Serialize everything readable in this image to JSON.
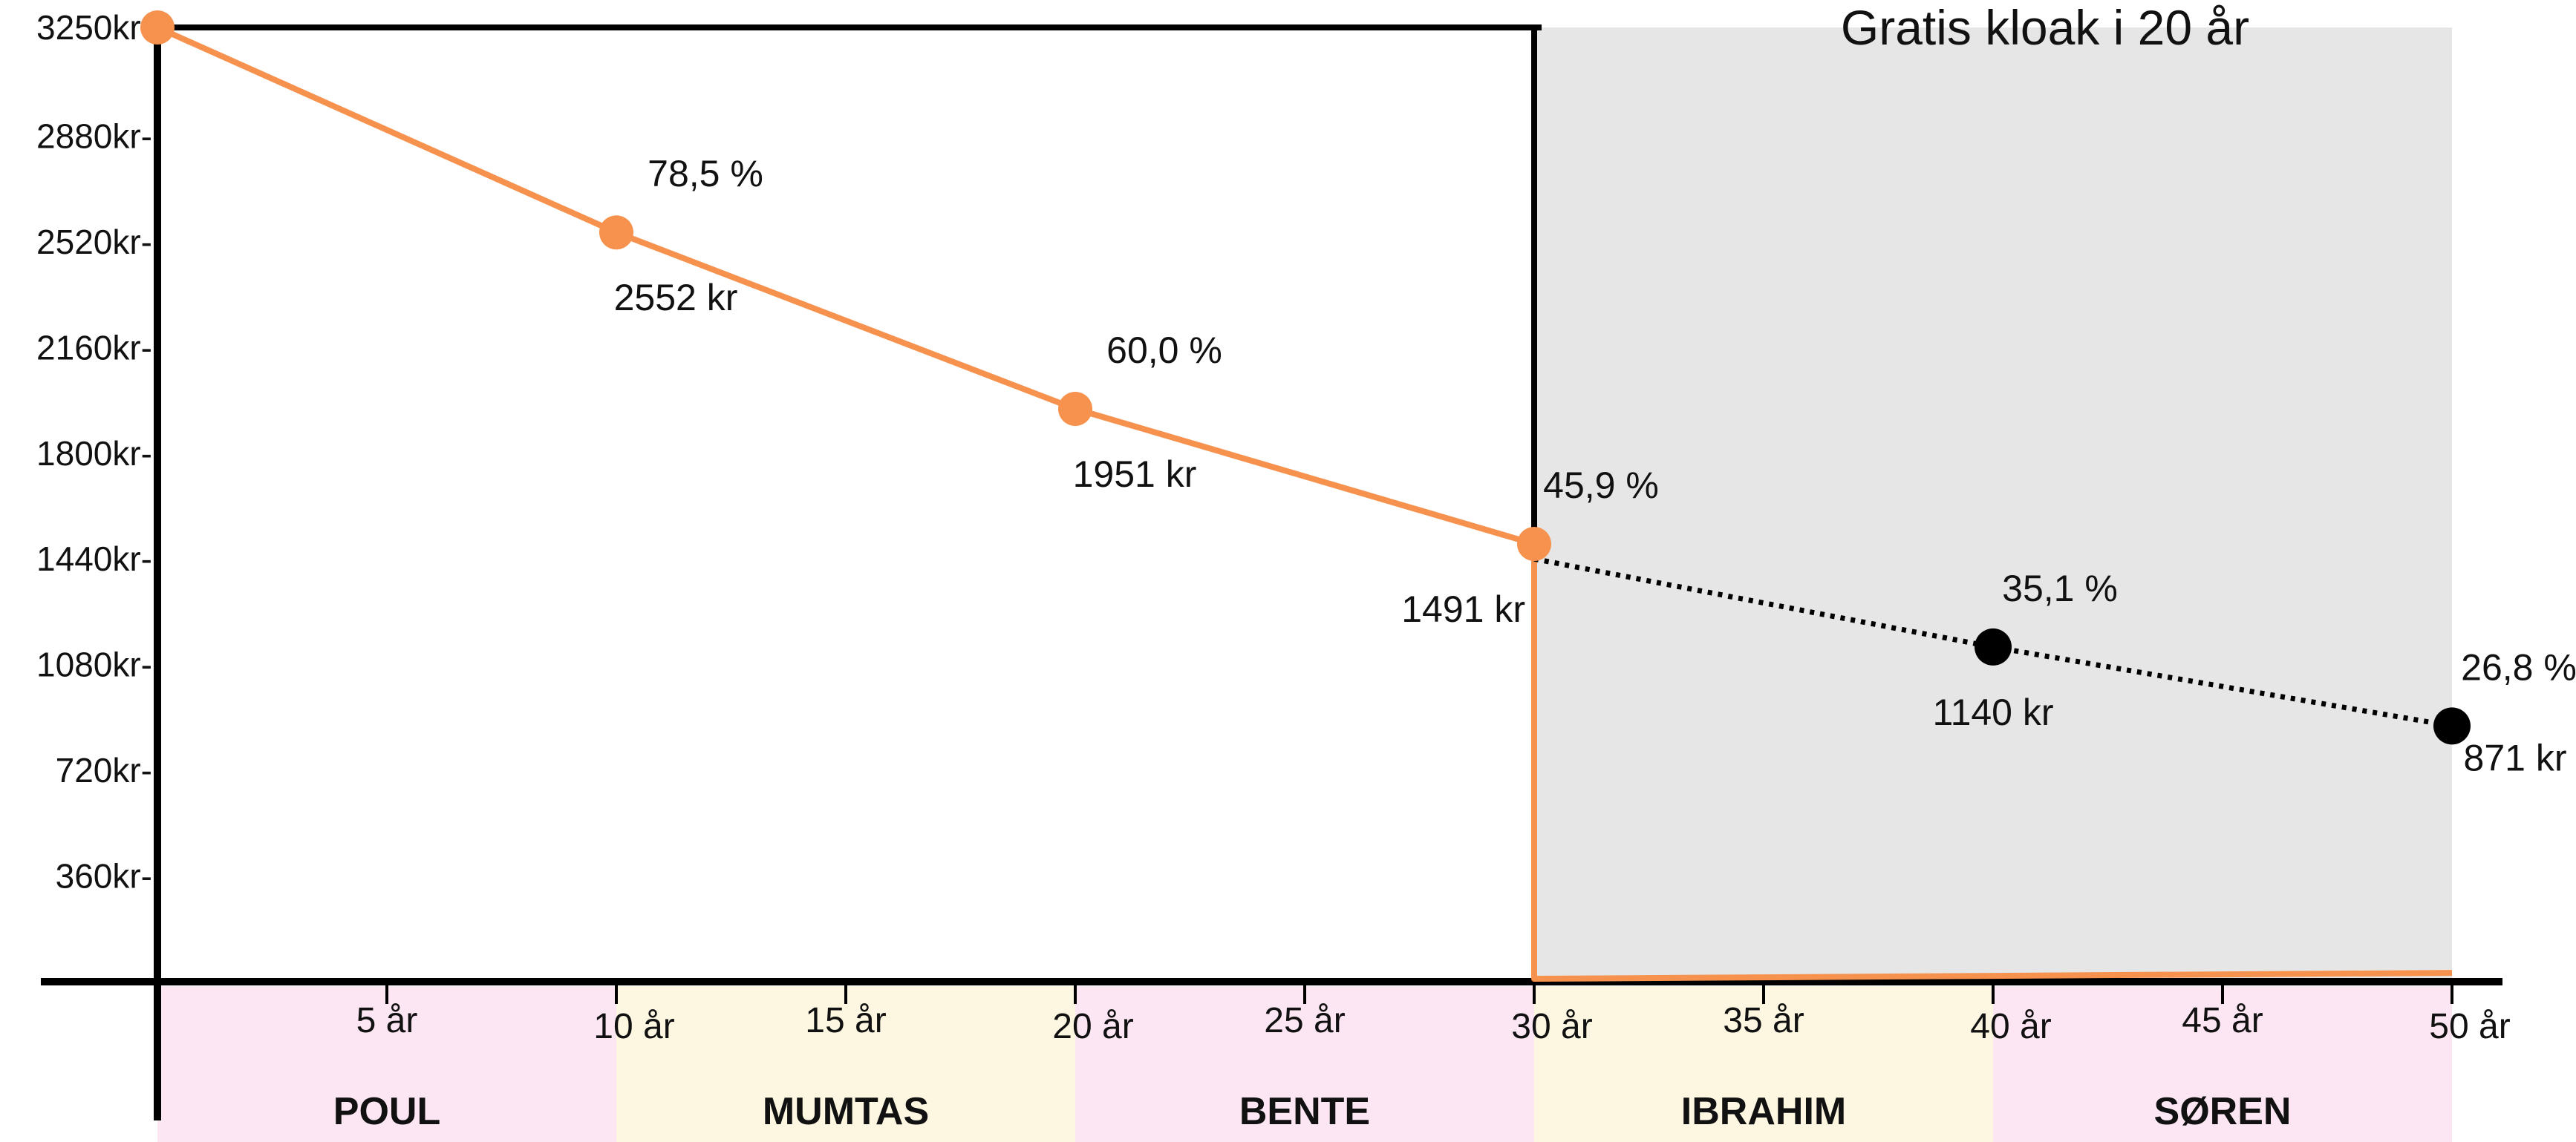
{
  "chart_data": {
    "type": "line",
    "x_unit_label": "år",
    "y_ticks": [
      {
        "value": 3250,
        "label": "3250kr-"
      },
      {
        "value": 2880,
        "label": "2880kr-"
      },
      {
        "value": 2520,
        "label": "2520kr-"
      },
      {
        "value": 2160,
        "label": "2160kr-"
      },
      {
        "value": 1800,
        "label": "1800kr-"
      },
      {
        "value": 1440,
        "label": "1440kr-"
      },
      {
        "value": 1080,
        "label": "1080kr-"
      },
      {
        "value": 720,
        "label": "720kr-"
      },
      {
        "value": 360,
        "label": "360kr-"
      }
    ],
    "ylim": [
      0,
      3250
    ],
    "xlim": [
      0,
      50
    ],
    "x_ticks": [
      {
        "value": 5,
        "label": "5 år"
      },
      {
        "value": 10,
        "label": "10 år"
      },
      {
        "value": 15,
        "label": "15 år"
      },
      {
        "value": 20,
        "label": "20 år"
      },
      {
        "value": 25,
        "label": "25 år"
      },
      {
        "value": 30,
        "label": "30 år"
      },
      {
        "value": 35,
        "label": "35 år"
      },
      {
        "value": 40,
        "label": "40 år"
      },
      {
        "value": 45,
        "label": "45 år"
      },
      {
        "value": 50,
        "label": "50 år"
      }
    ],
    "shaded_region": {
      "x_start": 30,
      "x_end": 50,
      "label": "Gratis kloak i 20 år",
      "color": "#e6e6e6"
    },
    "series": [
      {
        "style": "solid",
        "color": "#f7924e",
        "points": [
          {
            "x": 0,
            "y": 3250
          },
          {
            "x": 10,
            "y": 2552,
            "value_label": "2552 kr",
            "pct_label": "78,5 %"
          },
          {
            "x": 20,
            "y": 1951,
            "value_label": "1951 kr",
            "pct_label": "60,0 %"
          },
          {
            "x": 30,
            "y": 1491,
            "value_label": "1491 kr",
            "pct_label": "45,9 %"
          }
        ],
        "continuation": [
          {
            "x": 30,
            "y": 1491
          },
          {
            "x": 30,
            "y": 10
          },
          {
            "x": 50,
            "y": 30
          }
        ]
      },
      {
        "style": "dotted",
        "color": "#000000",
        "points": [
          {
            "x": 30,
            "y": 1440
          },
          {
            "x": 40,
            "y": 1140,
            "value_label": "1140 kr",
            "pct_label": "35,1 %"
          },
          {
            "x": 50,
            "y": 871,
            "value_label": "871 kr",
            "pct_label": "26,8 %"
          }
        ]
      }
    ],
    "segments": [
      {
        "x_start": 0,
        "x_end": 10,
        "name": "POUL",
        "color": "#fde6f3"
      },
      {
        "x_start": 10,
        "x_end": 20,
        "name": "MUMTAS",
        "color": "#fdf7e1"
      },
      {
        "x_start": 20,
        "x_end": 30,
        "name": "BENTE",
        "color": "#fde6f3"
      },
      {
        "x_start": 30,
        "x_end": 40,
        "name": "IBRAHIM",
        "color": "#fdf7e1"
      },
      {
        "x_start": 40,
        "x_end": 50,
        "name": "SØREN",
        "color": "#fde6f3"
      }
    ],
    "colors": {
      "solid_line": "#f7924e",
      "dotted_line": "#000000",
      "axis": "#000000"
    }
  }
}
